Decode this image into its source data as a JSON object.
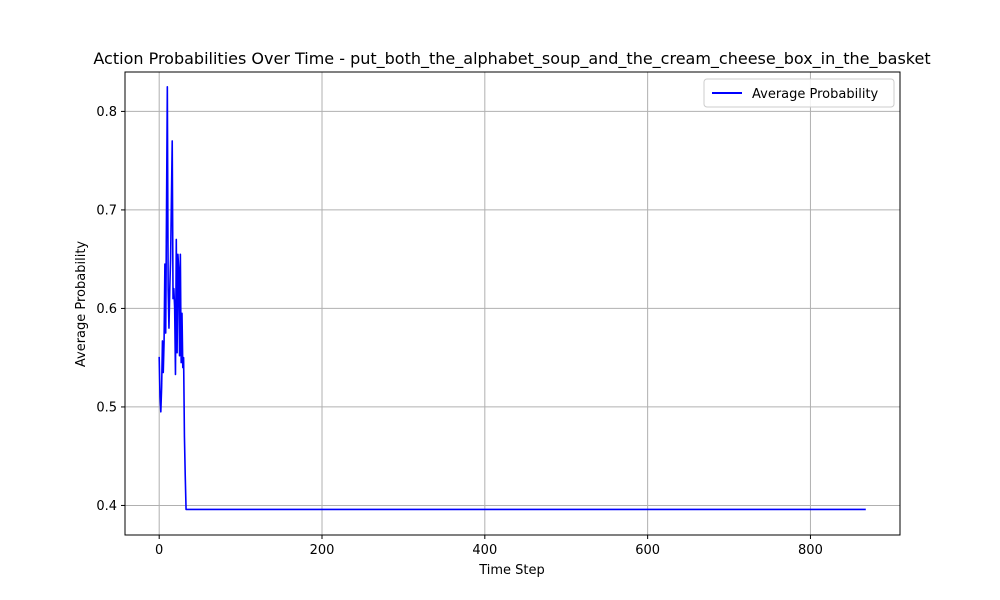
{
  "chart_data": {
    "type": "line",
    "title": "Action Probabilities Over Time - put_both_the_alphabet_soup_and_the_cream_cheese_box_in_the_basket",
    "xlabel": "Time Step",
    "ylabel": "Average Probability",
    "xlim": [
      -42,
      910
    ],
    "ylim": [
      0.37,
      0.84
    ],
    "xticks": [
      0,
      200,
      400,
      600,
      800
    ],
    "yticks": [
      0.4,
      0.5,
      0.6,
      0.7,
      0.8
    ],
    "grid": true,
    "legend": {
      "placement": "top-right",
      "entries": [
        "Average Probability"
      ]
    },
    "series": [
      {
        "name": "Average Probability",
        "color": "#0000ff",
        "x": [
          0,
          1,
          2,
          3,
          4,
          5,
          6,
          7,
          8,
          9,
          10,
          11,
          12,
          13,
          14,
          15,
          16,
          17,
          18,
          19,
          20,
          21,
          22,
          23,
          24,
          25,
          26,
          27,
          28,
          29,
          30,
          31,
          32,
          33,
          34,
          867
        ],
        "y": [
          0.55,
          0.51,
          0.495,
          0.52,
          0.567,
          0.535,
          0.567,
          0.645,
          0.575,
          0.7,
          0.825,
          0.62,
          0.58,
          0.62,
          0.65,
          0.71,
          0.77,
          0.61,
          0.62,
          0.6,
          0.533,
          0.67,
          0.555,
          0.655,
          0.64,
          0.552,
          0.655,
          0.545,
          0.595,
          0.54,
          0.55,
          0.47,
          0.43,
          0.396,
          0.396,
          0.396
        ]
      }
    ]
  }
}
